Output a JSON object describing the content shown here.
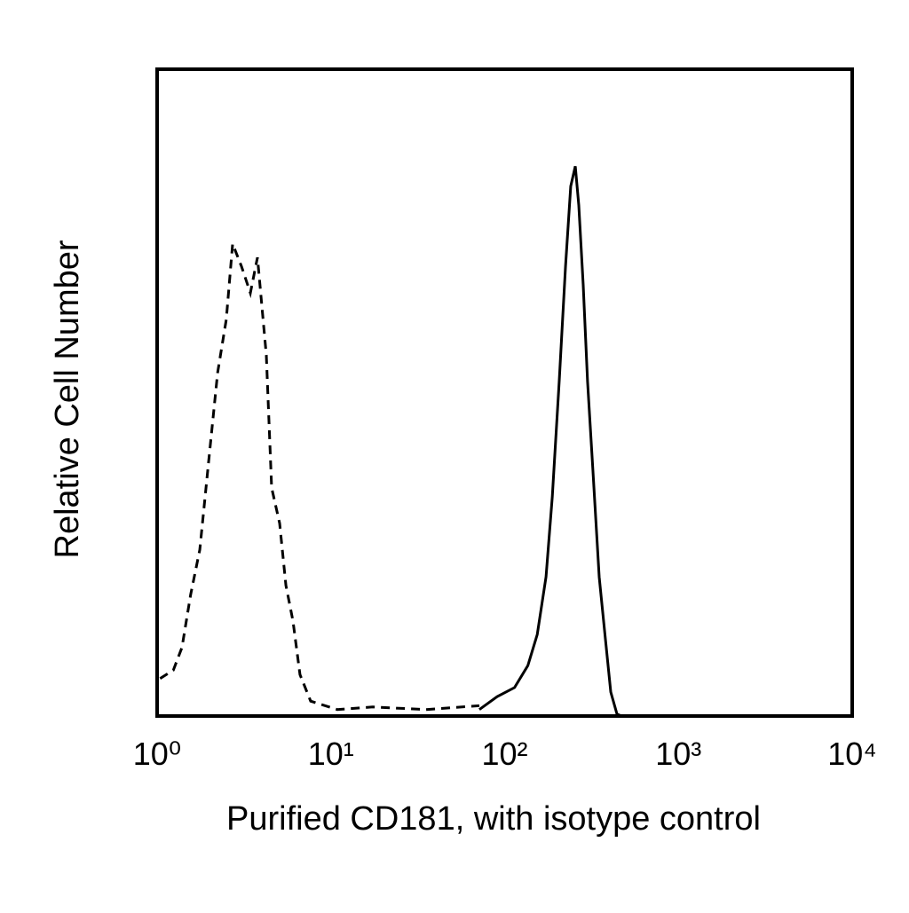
{
  "chart_data": {
    "type": "line",
    "x_label": "Purified CD181, with isotype control",
    "y_label": "Relative Cell Number",
    "xscale": "log",
    "xlim": [
      1,
      10000
    ],
    "ylim": [
      0,
      100
    ],
    "xticks": [
      {
        "value": 1,
        "label": "10⁰"
      },
      {
        "value": 10,
        "label": "10¹"
      },
      {
        "value": 100,
        "label": "10²"
      },
      {
        "value": 1000,
        "label": "10³"
      },
      {
        "value": 10000,
        "label": "10⁴"
      }
    ],
    "series": [
      {
        "color": "#000000",
        "line_style": "dashed",
        "x": [
          1.04,
          1.24,
          1.39,
          1.56,
          1.76,
          1.98,
          2.23,
          2.5,
          2.72,
          3.06,
          3.44,
          3.78,
          4.25,
          4.56,
          5.07,
          5.51,
          6.05,
          6.64,
          7.65,
          10.9,
          17.4,
          35.3,
          71.5
        ],
        "values": [
          5.8,
          7.1,
          10.6,
          18.8,
          25.7,
          39.4,
          53.1,
          61.3,
          73,
          69.5,
          65.4,
          70.9,
          55.8,
          35.3,
          29.8,
          20.2,
          14.7,
          6.4,
          2.3,
          1,
          1.4,
          1,
          1.6
        ]
      },
      {
        "color": "#000000",
        "line_style": "solid",
        "x": [
          71.5,
          90.5,
          114,
          136,
          154,
          173,
          188,
          206,
          224,
          240,
          255,
          267,
          283,
          300,
          322,
          350,
          380,
          408,
          443,
          470
        ],
        "values": [
          1,
          3,
          4.4,
          7.8,
          12.6,
          21.5,
          33.9,
          51.7,
          69.5,
          81.9,
          85,
          79,
          66.8,
          51.7,
          38,
          21.5,
          11.9,
          3.7,
          0.3,
          0
        ]
      }
    ]
  }
}
